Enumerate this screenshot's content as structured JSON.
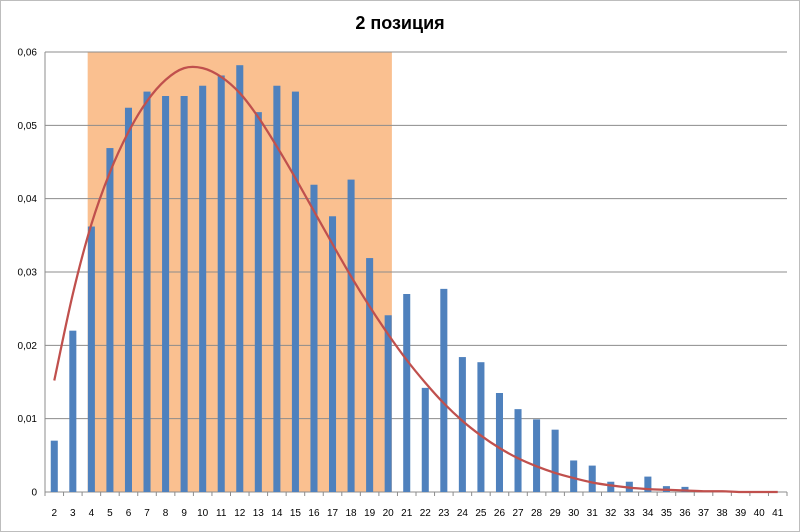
{
  "chart_data": {
    "type": "bar",
    "title": "2 позиция",
    "xlabel": "",
    "ylabel": "",
    "categories": [
      "2",
      "3",
      "4",
      "5",
      "6",
      "7",
      "8",
      "9",
      "10",
      "11",
      "12",
      "13",
      "14",
      "15",
      "16",
      "17",
      "18",
      "19",
      "20",
      "21",
      "22",
      "23",
      "24",
      "25",
      "26",
      "27",
      "28",
      "29",
      "30",
      "31",
      "32",
      "33",
      "34",
      "35",
      "36",
      "37",
      "38",
      "39",
      "40",
      "41"
    ],
    "series": [
      {
        "type": "bar",
        "color": "#4f81bd",
        "values": [
          0.007,
          0.022,
          0.0362,
          0.0469,
          0.0524,
          0.0546,
          0.054,
          0.054,
          0.0554,
          0.0568,
          0.0582,
          0.0518,
          0.0554,
          0.0546,
          0.0419,
          0.0376,
          0.0426,
          0.0319,
          0.0241,
          0.027,
          0.0142,
          0.0277,
          0.0184,
          0.0177,
          0.0135,
          0.0113,
          0.0099,
          0.0085,
          0.0043,
          0.0036,
          0.0014,
          0.0014,
          0.0021,
          0.0008,
          0.0007,
          0.0002,
          0.0001,
          0.0001,
          0.0001,
          0.0
        ]
      },
      {
        "type": "line",
        "color": "#c0504d",
        "values": [
          0.0152,
          0.027,
          0.0365,
          0.0436,
          0.0491,
          0.0533,
          0.0562,
          0.0578,
          0.0578,
          0.0566,
          0.0544,
          0.0511,
          0.0471,
          0.0428,
          0.0383,
          0.0338,
          0.0294,
          0.0253,
          0.0215,
          0.018,
          0.0149,
          0.0121,
          0.0097,
          0.0077,
          0.006,
          0.0046,
          0.0035,
          0.0026,
          0.0019,
          0.0013,
          0.0009,
          0.0006,
          0.0004,
          0.0003,
          0.0002,
          0.0001,
          0.0001,
          0.0,
          0.0,
          0.0
        ]
      }
    ],
    "ylim": [
      0,
      0.06
    ],
    "yticks": [
      "0",
      "0,01",
      "0,02",
      "0,03",
      "0,04",
      "0,05",
      "0,06"
    ],
    "highlight": {
      "from_category": "4",
      "to_category": "20",
      "color": "#fac090"
    },
    "grid": true,
    "legend": "none"
  }
}
